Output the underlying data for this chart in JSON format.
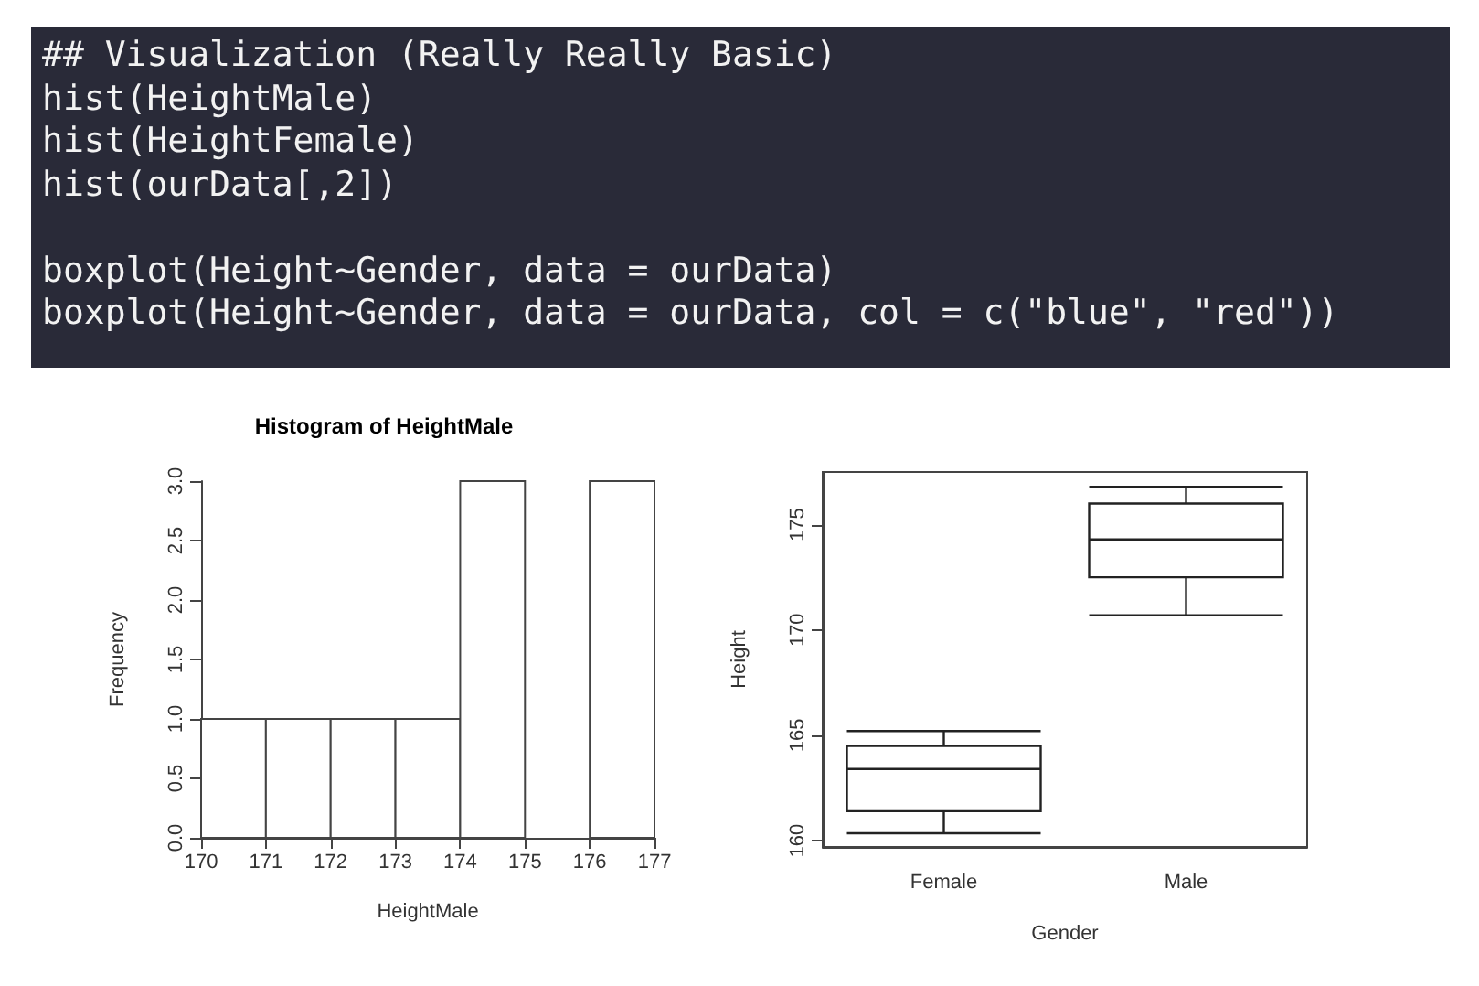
{
  "chart_data": [
    {
      "type": "other",
      "annotations": [
        "## Visualization (Really Really Basic)\nhist(HeightMale)\nhist(HeightFemale)\nhist(ourData[,2])",
        "boxplot(Height~Gender, data = ourData)\nboxplot(Height~Gender, data = ourData, col = c(\"blue\", \"red\"))"
      ]
    },
    {
      "type": "histogram",
      "title": "Histogram of HeightMale",
      "xlabel": "HeightMale",
      "ylabel": "Frequency",
      "bins": [
        170,
        171,
        172,
        173,
        174,
        175,
        176,
        177
      ],
      "values": [
        1,
        1,
        1,
        1,
        3,
        0,
        3
      ],
      "color": "#ffffff",
      "xlim": [
        170,
        177
      ],
      "xticks": [
        170,
        171,
        172,
        173,
        174,
        175,
        176,
        177
      ],
      "ylim": [
        0,
        3
      ],
      "yticks": [
        {
          "value": 0,
          "label": "0.0"
        },
        {
          "value": 0.5,
          "label": "0.5"
        },
        {
          "value": 1,
          "label": "1.0"
        },
        {
          "value": 1.5,
          "label": "1.5"
        },
        {
          "value": 2,
          "label": "2.0"
        },
        {
          "value": 2.5,
          "label": "2.5"
        },
        {
          "value": 3,
          "label": "3.0"
        }
      ],
      "grid": false
    },
    {
      "type": "box",
      "xlabel": "Gender",
      "ylabel": "Height",
      "categories": [
        "Female",
        "Male"
      ],
      "color": "#ffffff",
      "boxes": [
        {
          "low": 160.35,
          "q1": 161.4,
          "median": 163.4,
          "q3": 164.5,
          "high": 165.2
        },
        {
          "low": 170.7,
          "q1": 172.5,
          "median": 174.3,
          "q3": 176.0,
          "high": 176.8
        }
      ],
      "ylim": [
        159.7,
        177.5
      ],
      "yticks": [
        160,
        165,
        170,
        175
      ],
      "grid": false
    }
  ]
}
